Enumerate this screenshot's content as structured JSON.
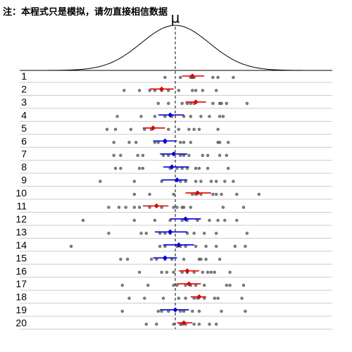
{
  "note": "注：本程式只是模拟，请勿直接相信数据",
  "chart_data": {
    "type": "scatter",
    "title": "",
    "mu_label": "μ",
    "mu": 0,
    "xlim": [
      -3.8,
      4.2
    ],
    "colors": {
      "significant": "#e00000",
      "covers_mu": "#0000dd",
      "points": "#555555",
      "grid": "#cccccc",
      "curve": "#000000"
    },
    "samples": [
      {
        "label": "1",
        "points": [
          -0.3,
          0.15,
          0.45,
          0.5,
          0.55,
          1.1,
          1.25,
          1.7
        ],
        "mean": 0.5,
        "ci": [
          0.2,
          0.85
        ],
        "covers_mu": false
      },
      {
        "label": "2",
        "points": [
          -1.5,
          -1.05,
          -0.75,
          -0.6,
          -0.4,
          -0.2,
          0.1,
          0.5,
          0.6,
          0.8,
          1.2
        ],
        "mean": -0.4,
        "ci": [
          -0.75,
          -0.05
        ],
        "covers_mu": false
      },
      {
        "label": "3",
        "points": [
          -0.5,
          -0.2,
          0.2,
          0.35,
          0.45,
          0.55,
          1.1,
          1.3,
          1.35,
          1.5,
          2.1
        ],
        "mean": 0.6,
        "ci": [
          0.3,
          0.9
        ],
        "covers_mu": false
      },
      {
        "label": "4",
        "points": [
          -1.7,
          -1.0,
          -0.6,
          -0.3,
          -0.1,
          0.25,
          0.45,
          0.75,
          1.0,
          1.3,
          1.4
        ],
        "mean": -0.15,
        "ci": [
          -0.5,
          0.25
        ],
        "covers_mu": true
      },
      {
        "label": "5",
        "points": [
          -2.0,
          -1.75,
          -1.3,
          -0.9,
          -0.7,
          -0.2,
          0.1,
          0.4,
          0.55,
          0.7,
          1.25
        ],
        "mean": -0.65,
        "ci": [
          -0.95,
          -0.3
        ],
        "covers_mu": false
      },
      {
        "label": "6",
        "points": [
          -1.8,
          -1.35,
          -1.15,
          -0.6,
          -0.5,
          -0.3,
          0.15,
          0.25,
          0.45,
          1.25,
          1.3,
          1.55
        ],
        "mean": -0.3,
        "ci": [
          -0.65,
          0.05
        ],
        "covers_mu": true
      },
      {
        "label": "7",
        "points": [
          -1.8,
          -1.6,
          -1.1,
          -0.95,
          -0.35,
          -0.2,
          0.15,
          0.25,
          0.4,
          0.8,
          0.95,
          1.3,
          1.5
        ],
        "mean": -0.05,
        "ci": [
          -0.45,
          0.35
        ],
        "covers_mu": true
      },
      {
        "label": "8",
        "points": [
          -1.75,
          -1.6,
          -1.05,
          -0.95,
          -0.15,
          0.05,
          0.2,
          0.35,
          0.6,
          0.7,
          0.95,
          1.55
        ],
        "mean": -0.1,
        "ci": [
          -0.35,
          0.4
        ],
        "covers_mu": true
      },
      {
        "label": "9",
        "points": [
          -2.2,
          -1.2,
          -0.4,
          0.15,
          0.3,
          0.6,
          0.75,
          1.05,
          1.2,
          1.45,
          1.7
        ],
        "mean": 0.05,
        "ci": [
          -0.4,
          0.35
        ],
        "covers_mu": true
      },
      {
        "label": "10",
        "points": [
          -1.2,
          -0.75,
          -0.05,
          0.5,
          0.6,
          0.75,
          1.1,
          1.2,
          1.35,
          1.8,
          2.45
        ],
        "mean": 0.65,
        "ci": [
          0.3,
          1.05
        ],
        "covers_mu": false
      },
      {
        "label": "11",
        "points": [
          -1.95,
          -1.65,
          -1.45,
          -1.2,
          -1.05,
          -0.75,
          -0.4,
          -0.05,
          0.05,
          0.2,
          0.25,
          0.45,
          1.4,
          2.0
        ],
        "mean": -0.55,
        "ci": [
          -0.95,
          -0.2
        ],
        "covers_mu": false
      },
      {
        "label": "12",
        "points": [
          -2.7,
          -1.2,
          -0.6,
          -0.15,
          0.2,
          0.35,
          0.65,
          1.0,
          1.25,
          1.45,
          1.8
        ],
        "mean": 0.3,
        "ci": [
          -0.15,
          0.75
        ],
        "covers_mu": true
      },
      {
        "label": "13",
        "points": [
          -1.95,
          -1.0,
          -0.85,
          -0.45,
          -0.3,
          -0.15,
          0.35,
          0.55,
          0.85,
          1.2,
          2.1
        ],
        "mean": -0.15,
        "ci": [
          -0.6,
          0.35
        ],
        "covers_mu": true
      },
      {
        "label": "14",
        "points": [
          -3.05,
          -0.45,
          -0.3,
          0.05,
          0.15,
          0.3,
          0.6,
          0.9,
          1.2,
          1.75,
          2.05
        ],
        "mean": 0.1,
        "ci": [
          -0.35,
          0.55
        ],
        "covers_mu": true
      },
      {
        "label": "15",
        "points": [
          -1.6,
          -1.4,
          -0.7,
          -0.55,
          -0.3,
          -0.1,
          0.25,
          0.7,
          0.75,
          0.9,
          1.3
        ],
        "mean": -0.3,
        "ci": [
          -0.65,
          0.05
        ],
        "covers_mu": true
      },
      {
        "label": "16",
        "points": [
          -1.05,
          -0.4,
          -0.25,
          -0.05,
          0.2,
          0.35,
          0.55,
          0.8,
          0.95,
          1.05,
          1.15,
          1.6
        ],
        "mean": 0.35,
        "ci": [
          0.1,
          0.7
        ],
        "covers_mu": false
      },
      {
        "label": "17",
        "points": [
          -1.55,
          -0.8,
          -0.05,
          0.05,
          0.3,
          0.45,
          0.6,
          0.85,
          1.5,
          1.6,
          2.0
        ],
        "mean": 0.4,
        "ci": [
          0.05,
          0.75
        ],
        "covers_mu": false
      },
      {
        "label": "18",
        "points": [
          -1.35,
          -0.9,
          -0.35,
          0.1,
          0.3,
          0.55,
          0.65,
          0.85,
          1.15,
          1.25,
          1.95
        ],
        "mean": 0.7,
        "ci": [
          0.45,
          0.9
        ],
        "covers_mu": false
      },
      {
        "label": "19",
        "points": [
          -1.55,
          -0.5,
          -0.4,
          -0.2,
          0.15,
          0.25,
          0.5,
          0.7,
          1.35,
          2.05
        ],
        "mean": 0.0,
        "ci": [
          -0.45,
          0.4
        ],
        "covers_mu": true
      },
      {
        "label": "20",
        "points": [
          -0.85,
          -0.55,
          -0.05,
          0.15,
          0.2,
          0.3,
          0.55,
          0.7,
          1.0,
          1.2
        ],
        "mean": 0.25,
        "ci": [
          0.05,
          0.5
        ],
        "covers_mu": false
      }
    ]
  }
}
